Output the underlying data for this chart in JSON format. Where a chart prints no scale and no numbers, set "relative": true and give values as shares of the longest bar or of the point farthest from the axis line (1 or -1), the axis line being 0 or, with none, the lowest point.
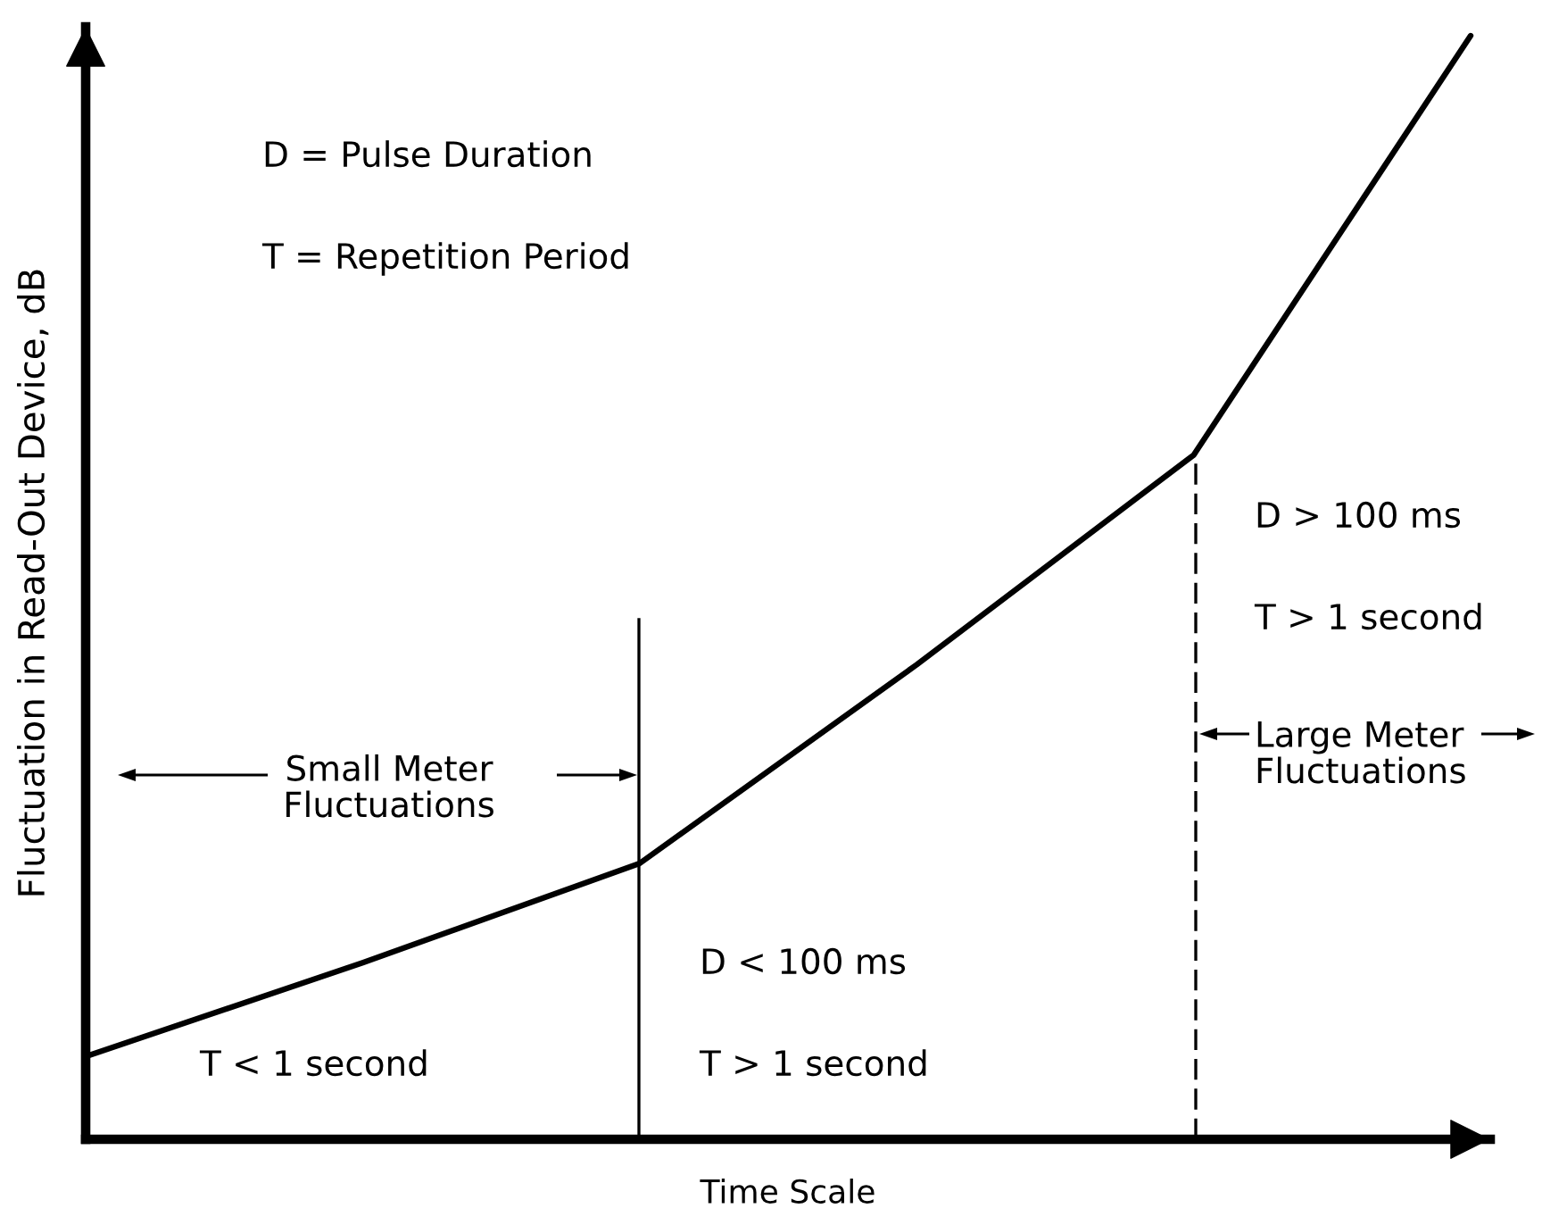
{
  "chart_data": {
    "type": "line",
    "xlabel": "Time Scale",
    "ylabel": "Fluctuation in Read-Out Device, dB",
    "categories": [
      null,
      null,
      null,
      null,
      null,
      null
    ],
    "values": [
      0.075,
      0.16,
      0.25,
      0.43,
      0.62,
      1
    ],
    "color": "#000000",
    "relative": true,
    "tick_labels": false,
    "annotations": [
      "D = Pulse Duration",
      "T = Repetition Period",
      "Small Meter\nFluctuations",
      "T < 1 second",
      "D < 100 ms",
      "T > 1 second",
      "D > 100 ms",
      "T > 1 second",
      "Large Meter\nFluctuations"
    ]
  }
}
